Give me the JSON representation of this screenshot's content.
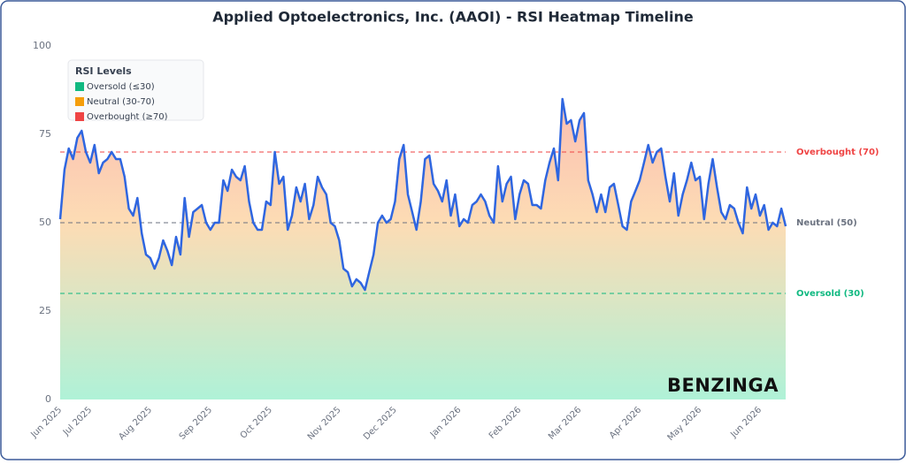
{
  "chart_data": {
    "type": "line",
    "title": "Applied Optoelectronics, Inc. (AAOI) - RSI Heatmap Timeline",
    "categories": [
      "Jun 2025",
      null,
      null,
      null,
      null,
      null,
      null,
      "Jul 2025",
      null,
      null,
      null,
      null,
      null,
      null,
      null,
      null,
      null,
      null,
      null,
      null,
      null,
      "Aug 2025",
      null,
      null,
      null,
      null,
      null,
      null,
      null,
      null,
      null,
      null,
      null,
      null,
      null,
      "Sep 2025",
      null,
      null,
      null,
      null,
      null,
      null,
      null,
      null,
      null,
      null,
      null,
      null,
      null,
      "Oct 2025",
      null,
      null,
      null,
      null,
      null,
      null,
      null,
      null,
      null,
      null,
      null,
      null,
      null,
      null,
      null,
      "Nov 2025",
      null,
      null,
      null,
      null,
      null,
      null,
      null,
      null,
      null,
      null,
      null,
      null,
      "Dec 2025",
      null,
      null,
      null,
      null,
      null,
      null,
      null,
      null,
      null,
      null,
      null,
      null,
      null,
      null,
      "Jan 2026",
      null,
      null,
      null,
      null,
      null,
      null,
      null,
      null,
      null,
      null,
      null,
      null,
      null,
      "Feb 2026",
      null,
      null,
      null,
      null,
      null,
      null,
      null,
      null,
      null,
      null,
      null,
      null,
      null,
      "Mar 2026",
      null,
      null,
      null,
      null,
      null,
      null,
      null,
      null,
      null,
      null,
      null,
      null,
      null,
      "Apr 2026",
      null,
      null,
      null,
      null,
      null,
      null,
      null,
      null,
      null,
      null,
      null,
      null,
      null,
      "May 2026",
      null,
      null,
      null,
      null,
      null,
      null,
      null,
      null,
      null,
      null,
      null,
      null,
      null,
      "Jun 2026",
      null,
      null,
      null,
      null,
      null,
      null
    ],
    "values": [
      51,
      65,
      71,
      68,
      74,
      76,
      70,
      67,
      72,
      64,
      67,
      68,
      70,
      68,
      68,
      63,
      54,
      52,
      57,
      47,
      41,
      40,
      37,
      40,
      45,
      42,
      38,
      46,
      41,
      57,
      46,
      53,
      54,
      55,
      50,
      48,
      50,
      50,
      62,
      59,
      65,
      63,
      62,
      66,
      56,
      50,
      48,
      48,
      56,
      55,
      70,
      61,
      63,
      48,
      52,
      60,
      56,
      61,
      51,
      55,
      63,
      60,
      58,
      50,
      49,
      45,
      37,
      36,
      32,
      34,
      33,
      31,
      36,
      41,
      50,
      52,
      50,
      51,
      56,
      68,
      72,
      58,
      53,
      48,
      56,
      68,
      69,
      61,
      59,
      56,
      62,
      52,
      58,
      49,
      51,
      50,
      55,
      56,
      58,
      56,
      52,
      50,
      66,
      56,
      61,
      63,
      51,
      58,
      62,
      61,
      55,
      55,
      54,
      62,
      67,
      71,
      62,
      85,
      78,
      79,
      73,
      79,
      81,
      62,
      58,
      53,
      58,
      53,
      60,
      61,
      55,
      49,
      48,
      56,
      59,
      62,
      67,
      72,
      67,
      70,
      71,
      63,
      56,
      64,
      52,
      58,
      62,
      67,
      62,
      63,
      51,
      61,
      68,
      60,
      53,
      51,
      55,
      54,
      50,
      47,
      60,
      54,
      58,
      52,
      55,
      48,
      50,
      49,
      54,
      49
    ],
    "color": "#2f66e0",
    "ylim": [
      0,
      100
    ],
    "yticks": [
      0,
      25,
      50,
      75,
      100
    ],
    "reference_lines": [
      {
        "value": 70,
        "label": "Overbought (70)",
        "color": "#ef4444"
      },
      {
        "value": 50,
        "label": "Neutral (50)",
        "color": "#6b7280"
      },
      {
        "value": 30,
        "label": "Oversold (30)",
        "color": "#10b981"
      }
    ],
    "legend": {
      "title": "RSI Levels",
      "position": "upper left",
      "items": [
        {
          "name": "Oversold (≤30)",
          "color": "#10b981"
        },
        {
          "name": "Neutral (30-70)",
          "color": "#f59e0b"
        },
        {
          "name": "Overbought (≥70)",
          "color": "#ef4444"
        }
      ]
    },
    "watermark": "BENZINGA"
  }
}
